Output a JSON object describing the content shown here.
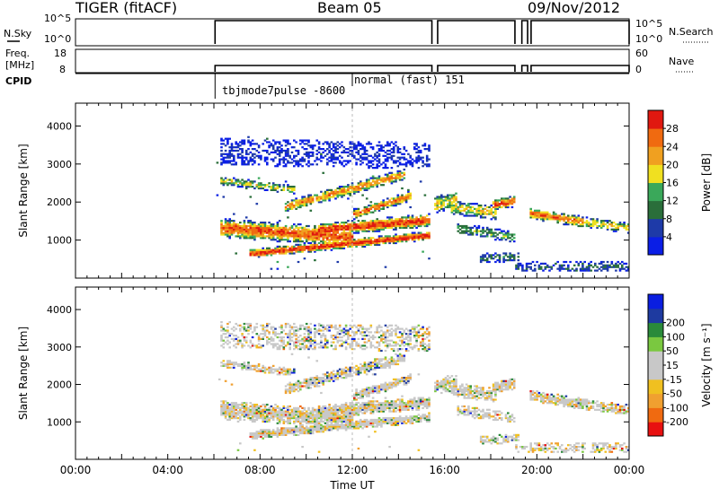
{
  "header": {
    "station": "TIGER (fitACF)",
    "beam": "Beam 05",
    "date": "09/Nov/2012"
  },
  "status_panels": {
    "nsky": {
      "label": "N.Sky",
      "ticks": [
        "10^5",
        "10^0"
      ]
    },
    "nsearch": {
      "label": "N.Search",
      "ticks": [
        "10^5",
        "10^0"
      ]
    },
    "freq": {
      "label_line1": "Freq.",
      "label_line2": "[MHz]",
      "ticks": [
        "18",
        "8"
      ]
    },
    "nave": {
      "label": "Nave",
      "ticks": [
        "60",
        "0"
      ]
    },
    "cpid": {
      "label": "CPID",
      "programs": [
        "tbjmode7pulse -8600",
        "normal (fast) 151"
      ]
    }
  },
  "chart_data": [
    {
      "type": "heatmap",
      "name": "power",
      "ylabel": "Slant Range [km]",
      "ylim": [
        0,
        4600
      ],
      "yticks": [
        "1000",
        "2000",
        "3000",
        "4000"
      ],
      "xlim": [
        "00:00",
        "24:00"
      ],
      "colorbar": {
        "label": "Power [dB]",
        "colors": [
          "#0a1ee6",
          "#1e3aa8",
          "#2a6e3a",
          "#3aa85a",
          "#f0e020",
          "#f0a020",
          "#f06a10",
          "#e01810"
        ],
        "ticks": [
          "4",
          "8",
          "12",
          "16",
          "20",
          "24",
          "28"
        ]
      }
    },
    {
      "type": "heatmap",
      "name": "velocity",
      "ylabel": "Slant Range [km]",
      "ylim": [
        0,
        4600
      ],
      "yticks": [
        "1000",
        "2000",
        "3000",
        "4000"
      ],
      "xlim": [
        "00:00",
        "24:00"
      ],
      "colorbar": {
        "label": "Velocity [m s⁻¹]",
        "colors": [
          "#e81010",
          "#f06a10",
          "#f0a030",
          "#f0c020",
          "#c8c8c8",
          "#c8c8c8",
          "#7ac840",
          "#2a8a3a",
          "#1e3aa0",
          "#0a1ee0"
        ],
        "ticks": [
          "-200",
          "-100",
          "-50",
          "-15",
          "15",
          "50",
          "100",
          "200"
        ]
      }
    }
  ],
  "xaxis": {
    "ticks": [
      "00:00",
      "04:00",
      "08:00",
      "12:00",
      "16:00",
      "20:00",
      "00:00"
    ],
    "label": "Time UT"
  },
  "colors": {
    "frame": "#000000",
    "background": "#ffffff"
  }
}
